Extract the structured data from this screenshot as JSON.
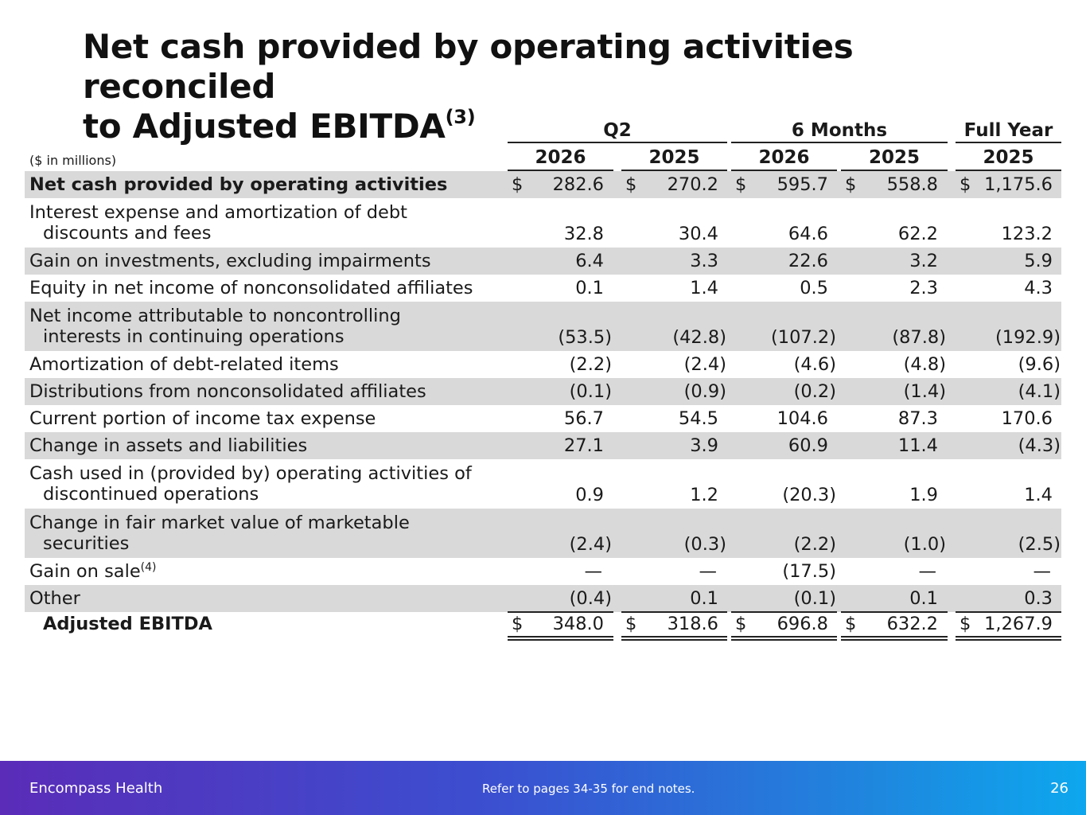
{
  "title": {
    "text": "Net cash provided by operating activities reconciled to Adjusted EBITDA",
    "line1": "Net cash provided by operating activities reconciled",
    "line2": "to Adjusted EBITDA",
    "sup": "(3)"
  },
  "units": "($ in millions)",
  "column_groups": [
    "Q2",
    "6 Months",
    "Full Year"
  ],
  "years": [
    "2026",
    "2025",
    "2026",
    "2025",
    "2025"
  ],
  "rows": [
    {
      "label": "Net cash provided by operating activities",
      "values": [
        "282.6",
        "270.2",
        "595.7",
        "558.8",
        "1,175.6"
      ]
    },
    {
      "label": "Interest expense and amortization of debt discounts and fees",
      "label_line1": "Interest expense and amortization of debt",
      "label_line2": "discounts and fees",
      "values": [
        "32.8",
        "30.4",
        "64.6",
        "62.2",
        "123.2"
      ]
    },
    {
      "label": "Gain on investments, excluding impairments",
      "values": [
        "6.4",
        "3.3",
        "22.6",
        "3.2",
        "5.9"
      ]
    },
    {
      "label": "Equity in net income of nonconsolidated affiliates",
      "values": [
        "0.1",
        "1.4",
        "0.5",
        "2.3",
        "4.3"
      ]
    },
    {
      "label": "Net income attributable to noncontrolling interests in continuing operations",
      "label_line1": "Net income attributable to noncontrolling",
      "label_line2": "interests in continuing operations",
      "values": [
        "(53.5)",
        "(42.8)",
        "(107.2)",
        "(87.8)",
        "(192.9)"
      ]
    },
    {
      "label": "Amortization of debt-related items",
      "values": [
        "(2.2)",
        "(2.4)",
        "(4.6)",
        "(4.8)",
        "(9.6)"
      ]
    },
    {
      "label": "Distributions from nonconsolidated affiliates",
      "values": [
        "(0.1)",
        "(0.9)",
        "(0.2)",
        "(1.4)",
        "(4.1)"
      ]
    },
    {
      "label": "Current portion of income tax expense",
      "values": [
        "56.7",
        "54.5",
        "104.6",
        "87.3",
        "170.6"
      ]
    },
    {
      "label": "Change in assets and liabilities",
      "values": [
        "27.1",
        "3.9",
        "60.9",
        "11.4",
        "(4.3)"
      ]
    },
    {
      "label": "Cash used in (provided by) operating activities of discontinued operations",
      "label_line1": "Cash used in (provided by) operating activities of",
      "label_line2": "discontinued operations",
      "values": [
        "0.9",
        "1.2",
        "(20.3)",
        "1.9",
        "1.4"
      ]
    },
    {
      "label": "Change in fair market value of marketable securities",
      "label_line1": "Change in fair market value of marketable",
      "label_line2": "securities",
      "values": [
        "(2.4)",
        "(0.3)",
        "(2.2)",
        "(1.0)",
        "(2.5)"
      ]
    },
    {
      "label": "Gain on sale",
      "label_sup": "(4)",
      "values": [
        "—",
        "—",
        "(17.5)",
        "—",
        "—"
      ]
    },
    {
      "label": "Other",
      "values": [
        "(0.4)",
        "0.1",
        "(0.1)",
        "0.1",
        "0.3"
      ]
    },
    {
      "label": "Adjusted EBITDA",
      "values": [
        "348.0",
        "318.6",
        "696.8",
        "632.2",
        "1,267.9"
      ]
    }
  ],
  "currency_symbol": "$",
  "footer": {
    "brand": "Encompass Health",
    "note": "Refer to pages 34-35 for end notes.",
    "page": "26"
  }
}
